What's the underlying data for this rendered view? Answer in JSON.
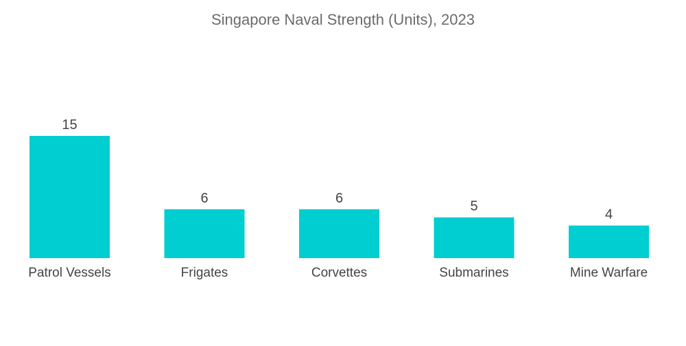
{
  "chart_data": {
    "type": "bar",
    "title": "Singapore Naval Strength (Units), 2023",
    "categories": [
      "Patrol Vessels",
      "Frigates",
      "Corvettes",
      "Submarines",
      "Mine Warfare"
    ],
    "values": [
      15,
      6,
      6,
      5,
      4
    ],
    "xlabel": "",
    "ylabel": "",
    "ylim": [
      0,
      15
    ],
    "grid": false,
    "legend": "none",
    "colors": {
      "bar": "#00ced1"
    }
  }
}
